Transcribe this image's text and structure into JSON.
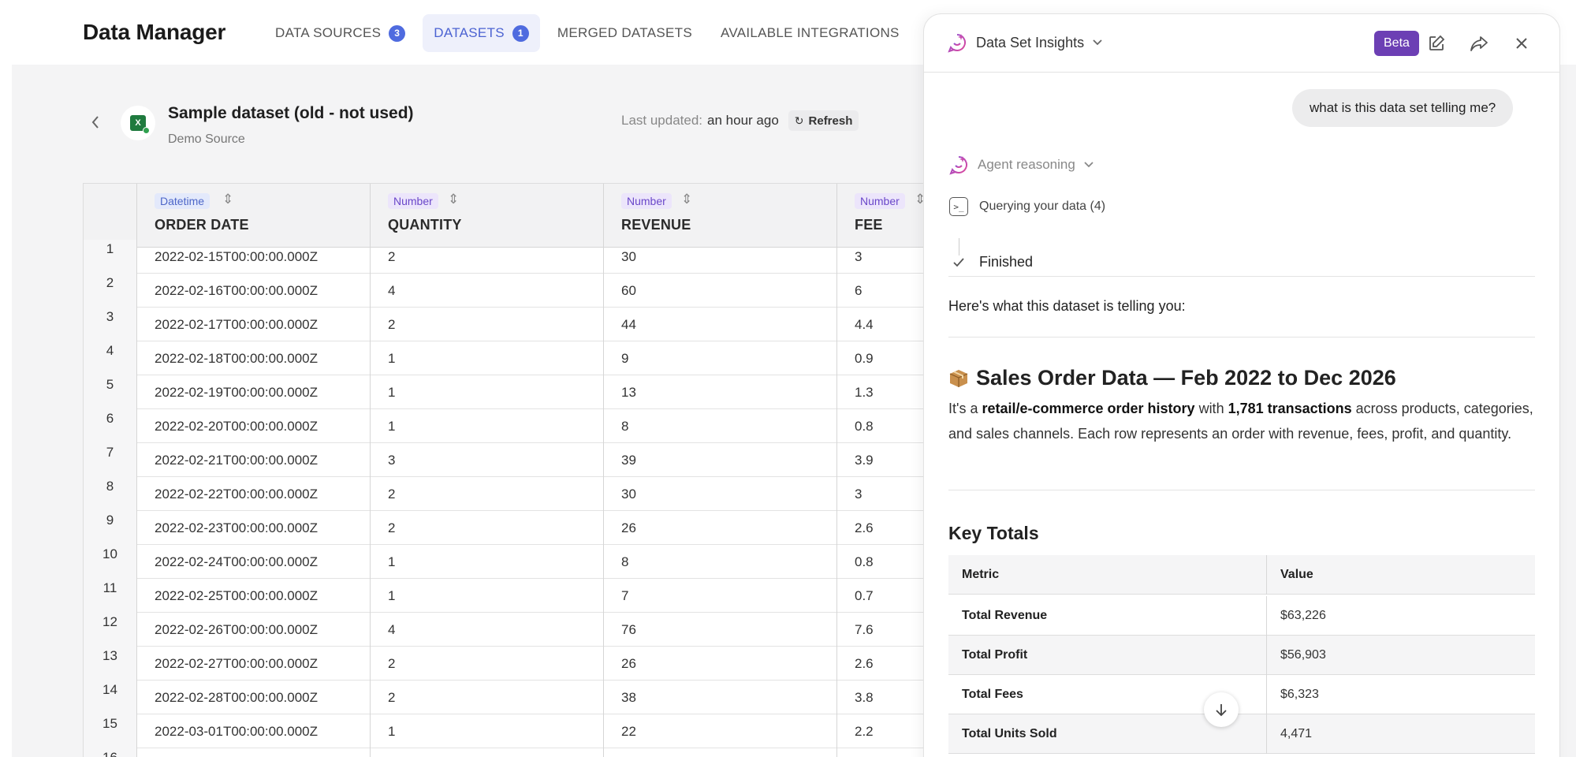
{
  "app": {
    "title": "Data Manager"
  },
  "nav": {
    "tabs": [
      {
        "label": "DATA SOURCES",
        "badge": "3",
        "active": false
      },
      {
        "label": "DATASETS",
        "badge": "1",
        "active": true
      },
      {
        "label": "MERGED DATASETS",
        "badge": null,
        "active": false
      },
      {
        "label": "AVAILABLE INTEGRATIONS",
        "badge": null,
        "active": false
      }
    ]
  },
  "dataset": {
    "title": "Sample dataset (old - not used)",
    "source": "Demo Source",
    "last_updated_label": "Last updated:",
    "last_updated_value": "an hour ago",
    "refresh_label": "Refresh"
  },
  "table": {
    "columns": [
      {
        "type": "Datetime",
        "label": "ORDER DATE"
      },
      {
        "type": "Number",
        "label": "QUANTITY"
      },
      {
        "type": "Number",
        "label": "REVENUE"
      },
      {
        "type": "Number",
        "label": "FEE"
      }
    ],
    "rows": [
      {
        "n": "1",
        "date": "2022-02-15T00:00:00.000Z",
        "qty": "2",
        "rev": "30",
        "fee": "3"
      },
      {
        "n": "2",
        "date": "2022-02-16T00:00:00.000Z",
        "qty": "4",
        "rev": "60",
        "fee": "6"
      },
      {
        "n": "3",
        "date": "2022-02-17T00:00:00.000Z",
        "qty": "2",
        "rev": "44",
        "fee": "4.4"
      },
      {
        "n": "4",
        "date": "2022-02-18T00:00:00.000Z",
        "qty": "1",
        "rev": "9",
        "fee": "0.9"
      },
      {
        "n": "5",
        "date": "2022-02-19T00:00:00.000Z",
        "qty": "1",
        "rev": "13",
        "fee": "1.3"
      },
      {
        "n": "6",
        "date": "2022-02-20T00:00:00.000Z",
        "qty": "1",
        "rev": "8",
        "fee": "0.8"
      },
      {
        "n": "7",
        "date": "2022-02-21T00:00:00.000Z",
        "qty": "3",
        "rev": "39",
        "fee": "3.9"
      },
      {
        "n": "8",
        "date": "2022-02-22T00:00:00.000Z",
        "qty": "2",
        "rev": "30",
        "fee": "3"
      },
      {
        "n": "9",
        "date": "2022-02-23T00:00:00.000Z",
        "qty": "2",
        "rev": "26",
        "fee": "2.6"
      },
      {
        "n": "10",
        "date": "2022-02-24T00:00:00.000Z",
        "qty": "1",
        "rev": "8",
        "fee": "0.8"
      },
      {
        "n": "11",
        "date": "2022-02-25T00:00:00.000Z",
        "qty": "1",
        "rev": "7",
        "fee": "0.7"
      },
      {
        "n": "12",
        "date": "2022-02-26T00:00:00.000Z",
        "qty": "4",
        "rev": "76",
        "fee": "7.6"
      },
      {
        "n": "13",
        "date": "2022-02-27T00:00:00.000Z",
        "qty": "2",
        "rev": "26",
        "fee": "2.6"
      },
      {
        "n": "14",
        "date": "2022-02-28T00:00:00.000Z",
        "qty": "2",
        "rev": "38",
        "fee": "3.8"
      },
      {
        "n": "15",
        "date": "2022-03-01T00:00:00.000Z",
        "qty": "1",
        "rev": "22",
        "fee": "2.2"
      },
      {
        "n": "16",
        "date": "",
        "qty": "",
        "rev": "",
        "fee": ""
      }
    ]
  },
  "panel": {
    "title": "Data Set Insights",
    "beta": "Beta",
    "user_message": "what is this data set telling me?",
    "reasoning_label": "Agent reasoning",
    "step_query": "Querying your data (4)",
    "step_done": "Finished",
    "intro": "Here's what this dataset is telling you:",
    "heading_emoji": "package-icon",
    "heading": "Sales Order Data — Feb 2022 to Dec 2026",
    "para": {
      "p1": "It's a ",
      "b1": "retail/e-commerce order history",
      "p2": " with ",
      "b2": "1,781 transactions",
      "p3": " across products, categories, and sales channels. Each row represents an order with revenue, fees, profit, and quantity."
    },
    "key_totals_title": "Key Totals",
    "key_totals": {
      "header": {
        "metric": "Metric",
        "value": "Value"
      },
      "rows": [
        {
          "metric": "Total Revenue",
          "value": "$63,226"
        },
        {
          "metric": "Total Profit",
          "value": "$56,903"
        },
        {
          "metric": "Total Fees",
          "value": "$6,323"
        },
        {
          "metric": "Total Units Sold",
          "value": "4,471"
        }
      ]
    }
  },
  "colors": {
    "accent": "#4f6bdf",
    "beta": "#6c3fb4",
    "excel": "#1f7a3e"
  }
}
